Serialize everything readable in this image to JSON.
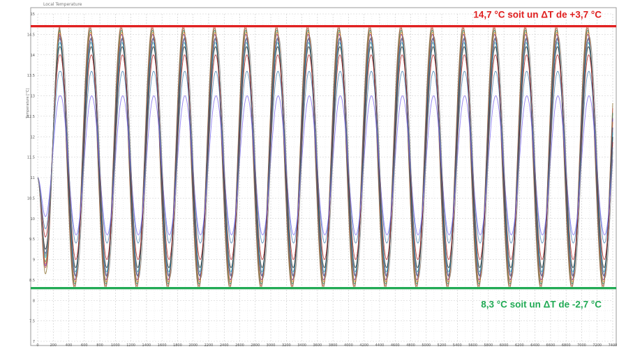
{
  "chart_data": {
    "type": "line",
    "title": "Local Temperature",
    "ylabel": "Temperature [°C]",
    "xlabel": "",
    "xlim": [
      0,
      7400
    ],
    "ylim": [
      7,
      15
    ],
    "x_ticks": [
      0,
      200,
      400,
      600,
      800,
      1000,
      1200,
      1400,
      1600,
      1800,
      2000,
      2200,
      2400,
      2600,
      2800,
      3000,
      3200,
      3400,
      3600,
      3800,
      4000,
      4200,
      4400,
      4600,
      4800,
      5000,
      5200,
      5400,
      5600,
      5800,
      6000,
      6200,
      6400,
      6600,
      6800,
      7000,
      7200,
      7400
    ],
    "y_ticks": [
      "7",
      "7.5",
      "8",
      "8.5",
      "9",
      "9.5",
      "10",
      "10.5",
      "11",
      "11.5",
      "12",
      "12.5",
      "13",
      "13.5",
      "14",
      "14.5",
      "15"
    ],
    "grid": true,
    "oscillation": {
      "start_value": 11,
      "first_trough_x": 100,
      "first_peak_x": 285,
      "period": 400,
      "cycles": 19
    },
    "series": [
      {
        "color": "#8b6f2c",
        "min": 8.3,
        "max": 14.7
      },
      {
        "color": "#c0504d",
        "min": 8.35,
        "max": 14.65
      },
      {
        "color": "#2e8b57",
        "min": 8.4,
        "max": 14.6
      },
      {
        "color": "#6a1b9a",
        "min": 8.5,
        "max": 14.5
      },
      {
        "color": "#e67e22",
        "min": 8.45,
        "max": 14.55
      },
      {
        "color": "#1a3b8c",
        "min": 8.6,
        "max": 14.4
      },
      {
        "color": "#17a2b8",
        "min": 8.7,
        "max": 14.3
      },
      {
        "color": "#1f1f1f",
        "min": 8.8,
        "max": 14.2
      },
      {
        "color": "#b22222",
        "min": 9.0,
        "max": 14.0
      },
      {
        "color": "#4682b4",
        "min": 9.4,
        "max": 13.6
      },
      {
        "color": "#7b68ee",
        "min": 9.6,
        "max": 13.0
      },
      {
        "color": "#808080",
        "min": 8.55,
        "max": 14.45
      }
    ],
    "reference_lines": [
      {
        "value": 14.7,
        "color": "#e02020",
        "label": "14,7 °C soit un ΔT de +3,7 °C"
      },
      {
        "value": 8.3,
        "color": "#22aa55",
        "label": "8,3 °C soit un ΔT de -2,7 °C"
      }
    ]
  }
}
